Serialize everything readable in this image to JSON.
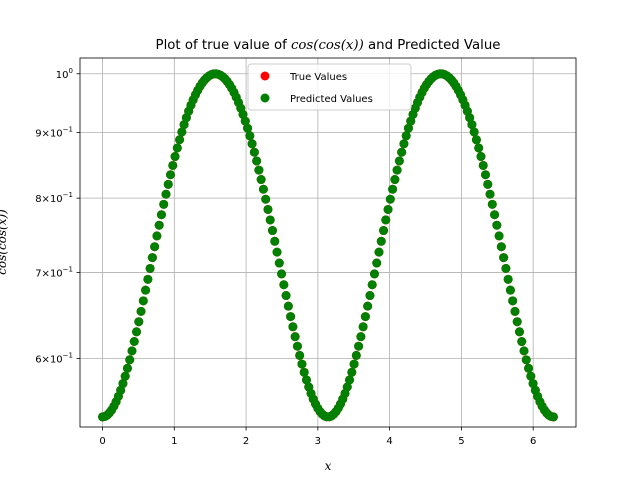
{
  "chart_data": {
    "type": "scatter",
    "title": "Plot of true value of cos(cos(x)) and Predicted Value",
    "title_parts": {
      "prefix": "Plot of true value of ",
      "math": "cos(cos(x))",
      "suffix": " and Predicted Value"
    },
    "xlabel": "x",
    "ylabel": "cos(cos(x))",
    "x_scale": "linear",
    "y_scale": "log",
    "xlim": [
      -0.314,
      6.597
    ],
    "ylim": [
      0.5306,
      1.0287
    ],
    "grid": true,
    "legend_placement": "upper center",
    "x_ticks": [
      {
        "value": 0,
        "label": "0"
      },
      {
        "value": 1,
        "label": "1"
      },
      {
        "value": 2,
        "label": "2"
      },
      {
        "value": 3,
        "label": "3"
      },
      {
        "value": 4,
        "label": "4"
      },
      {
        "value": 5,
        "label": "5"
      },
      {
        "value": 6,
        "label": "6"
      }
    ],
    "y_ticks": [
      {
        "value": 1.0,
        "mantissa": "",
        "exponent": "0"
      },
      {
        "value": 0.9,
        "mantissa": "9",
        "exponent": "−1"
      },
      {
        "value": 0.8,
        "mantissa": "8",
        "exponent": "−1"
      },
      {
        "value": 0.7,
        "mantissa": "7",
        "exponent": "−1"
      },
      {
        "value": 0.6,
        "mantissa": "6",
        "exponent": "−1"
      }
    ],
    "x_range": [
      0,
      6.2832
    ],
    "num_points": 200,
    "series": [
      {
        "name": "True Values",
        "color": "#ff0000",
        "function": "cos(cos(x))"
      },
      {
        "name": "Predicted Values",
        "color": "#008000",
        "function": "cos(cos(x))"
      }
    ]
  }
}
